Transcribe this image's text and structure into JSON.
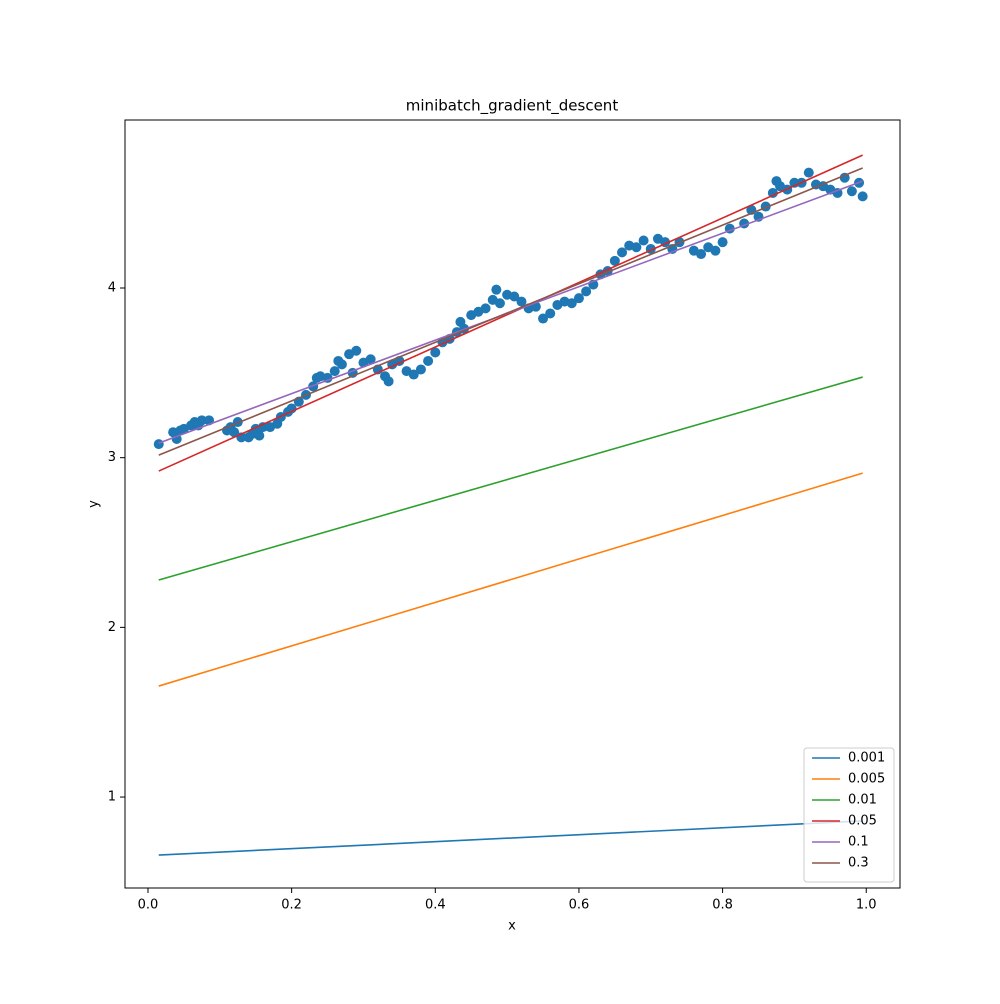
{
  "chart_data": {
    "type": "line",
    "title": "minibatch_gradient_descent",
    "xlabel": "x",
    "ylabel": "y",
    "xlim": [
      -0.032,
      1.047
    ],
    "ylim": [
      0.464,
      4.99
    ],
    "xticks": [
      {
        "value": 0,
        "label": "0.0"
      },
      0.2,
      0.4,
      0.6,
      0.8,
      {
        "value": 1,
        "label": "1.0"
      }
    ],
    "yticks": [
      1,
      2,
      3,
      4
    ],
    "grid": false,
    "legend": "lower right",
    "scatter": {
      "color": "#1f77b4",
      "x": [
        0.015,
        0.035,
        0.04,
        0.045,
        0.05,
        0.06,
        0.065,
        0.07,
        0.075,
        0.085,
        0.11,
        0.115,
        0.12,
        0.125,
        0.13,
        0.14,
        0.145,
        0.15,
        0.155,
        0.16,
        0.17,
        0.18,
        0.185,
        0.195,
        0.2,
        0.21,
        0.22,
        0.23,
        0.235,
        0.24,
        0.25,
        0.26,
        0.265,
        0.27,
        0.28,
        0.285,
        0.29,
        0.3,
        0.31,
        0.32,
        0.33,
        0.335,
        0.34,
        0.35,
        0.36,
        0.37,
        0.38,
        0.39,
        0.4,
        0.41,
        0.42,
        0.43,
        0.435,
        0.44,
        0.45,
        0.46,
        0.47,
        0.48,
        0.485,
        0.49,
        0.5,
        0.51,
        0.52,
        0.53,
        0.54,
        0.55,
        0.56,
        0.57,
        0.58,
        0.59,
        0.6,
        0.61,
        0.62,
        0.63,
        0.64,
        0.65,
        0.66,
        0.67,
        0.68,
        0.69,
        0.7,
        0.71,
        0.72,
        0.73,
        0.74,
        0.76,
        0.77,
        0.78,
        0.79,
        0.8,
        0.81,
        0.83,
        0.84,
        0.85,
        0.86,
        0.87,
        0.875,
        0.88,
        0.89,
        0.9,
        0.91,
        0.92,
        0.93,
        0.94,
        0.95,
        0.96,
        0.97,
        0.98,
        0.99,
        0.995
      ],
      "y": [
        3.08,
        3.15,
        3.11,
        3.16,
        3.17,
        3.19,
        3.21,
        3.19,
        3.22,
        3.22,
        3.16,
        3.18,
        3.15,
        3.21,
        3.12,
        3.12,
        3.14,
        3.17,
        3.13,
        3.18,
        3.18,
        3.2,
        3.24,
        3.27,
        3.29,
        3.33,
        3.37,
        3.42,
        3.47,
        3.48,
        3.47,
        3.51,
        3.57,
        3.55,
        3.61,
        3.5,
        3.63,
        3.56,
        3.58,
        3.52,
        3.48,
        3.45,
        3.55,
        3.57,
        3.51,
        3.49,
        3.52,
        3.57,
        3.62,
        3.68,
        3.7,
        3.74,
        3.8,
        3.76,
        3.84,
        3.86,
        3.88,
        3.93,
        3.99,
        3.91,
        3.96,
        3.95,
        3.92,
        3.88,
        3.89,
        3.82,
        3.85,
        3.9,
        3.92,
        3.91,
        3.94,
        3.98,
        4.02,
        4.08,
        4.1,
        4.16,
        4.21,
        4.25,
        4.24,
        4.28,
        4.23,
        4.29,
        4.27,
        4.23,
        4.27,
        4.22,
        4.2,
        4.24,
        4.22,
        4.27,
        4.35,
        4.38,
        4.46,
        4.42,
        4.48,
        4.56,
        4.63,
        4.6,
        4.58,
        4.62,
        4.62,
        4.68,
        4.61,
        4.6,
        4.58,
        4.56,
        4.65,
        4.57,
        4.62,
        4.54
      ]
    },
    "series": [
      {
        "name": "0.001",
        "color": "#1f77b4",
        "x": [
          0.015,
          0.995
        ],
        "values": [
          0.658,
          0.859
        ]
      },
      {
        "name": "0.005",
        "color": "#ff7f0e",
        "x": [
          0.015,
          0.995
        ],
        "values": [
          1.654,
          2.909
        ]
      },
      {
        "name": "0.01",
        "color": "#2ca02c",
        "x": [
          0.015,
          0.995
        ],
        "values": [
          2.279,
          3.475
        ]
      },
      {
        "name": "0.05",
        "color": "#d62728",
        "x": [
          0.015,
          0.995
        ],
        "values": [
          2.921,
          4.783
        ]
      },
      {
        "name": "0.1",
        "color": "#9467bd",
        "x": [
          0.015,
          0.995
        ],
        "values": [
          3.086,
          4.63
        ]
      },
      {
        "name": "0.3",
        "color": "#8c564b",
        "x": [
          0.015,
          0.995
        ],
        "values": [
          3.015,
          4.707
        ]
      }
    ]
  }
}
